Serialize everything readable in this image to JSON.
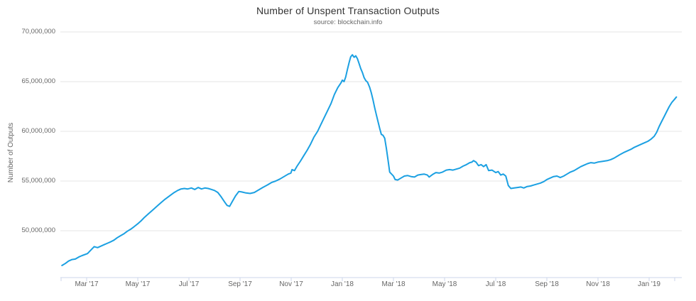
{
  "chart_data": {
    "type": "line",
    "title": "Number of Unspent Transaction Outputs",
    "subtitle": "source: blockchain.info",
    "xlabel": "",
    "ylabel": "Number of Outputs",
    "legend": "none",
    "grid": "horizontal",
    "ylim": [
      45300000,
      70600000
    ],
    "xlim": [
      "2017-02-01",
      "2019-02-10"
    ],
    "colors": {
      "line": "#1ba0e2",
      "gridline": "#e6e6e6",
      "axis_line": "#ccd6eb",
      "tick": "#ccd6eb",
      "label_text": "#666666",
      "title_text": "#333333"
    },
    "y_ticks": [
      {
        "value": 70000000,
        "label": "70,000,000"
      },
      {
        "value": 65000000,
        "label": "65,000,000"
      },
      {
        "value": 60000000,
        "label": "60,000,000"
      },
      {
        "value": 55000000,
        "label": "55,000,000"
      },
      {
        "value": 50000000,
        "label": "50,000,000"
      }
    ],
    "x_ticks": [
      {
        "date": "2017-02-01",
        "label": ""
      },
      {
        "date": "2017-03-01",
        "label": "Mar '17"
      },
      {
        "date": "2017-05-01",
        "label": "May '17"
      },
      {
        "date": "2017-07-01",
        "label": "Jul '17"
      },
      {
        "date": "2017-09-01",
        "label": "Sep '17"
      },
      {
        "date": "2017-11-01",
        "label": "Nov '17"
      },
      {
        "date": "2018-01-01",
        "label": "Jan '18"
      },
      {
        "date": "2018-03-01",
        "label": "Mar '18"
      },
      {
        "date": "2018-05-01",
        "label": "May '18"
      },
      {
        "date": "2018-07-01",
        "label": "Jul '18"
      },
      {
        "date": "2018-09-01",
        "label": "Sep '18"
      },
      {
        "date": "2018-11-01",
        "label": "Nov '18"
      },
      {
        "date": "2019-01-01",
        "label": "Jan '19"
      },
      {
        "date": "2019-02-01",
        "label": ""
      }
    ],
    "series": [
      {
        "name": "Number of unspent transaction outputs",
        "color": "#1ba0e2",
        "points": [
          [
            "2017-02-02",
            46500000
          ],
          [
            "2017-02-06",
            46700000
          ],
          [
            "2017-02-10",
            46950000
          ],
          [
            "2017-02-14",
            47100000
          ],
          [
            "2017-02-18",
            47150000
          ],
          [
            "2017-02-22",
            47350000
          ],
          [
            "2017-02-26",
            47500000
          ],
          [
            "2017-03-02",
            47700000
          ],
          [
            "2017-03-06",
            48050000
          ],
          [
            "2017-03-10",
            48400000
          ],
          [
            "2017-03-14",
            48300000
          ],
          [
            "2017-03-18",
            48450000
          ],
          [
            "2017-03-22",
            48600000
          ],
          [
            "2017-03-26",
            48750000
          ],
          [
            "2017-03-30",
            48900000
          ],
          [
            "2017-04-03",
            49050000
          ],
          [
            "2017-04-07",
            49300000
          ],
          [
            "2017-04-11",
            49500000
          ],
          [
            "2017-04-15",
            49700000
          ],
          [
            "2017-04-19",
            49950000
          ],
          [
            "2017-04-23",
            50150000
          ],
          [
            "2017-04-27",
            50400000
          ],
          [
            "2017-05-01",
            50700000
          ],
          [
            "2017-05-05",
            51000000
          ],
          [
            "2017-05-09",
            51350000
          ],
          [
            "2017-05-13",
            51650000
          ],
          [
            "2017-05-17",
            51950000
          ],
          [
            "2017-05-21",
            52250000
          ],
          [
            "2017-05-25",
            52550000
          ],
          [
            "2017-05-29",
            52850000
          ],
          [
            "2017-06-02",
            53100000
          ],
          [
            "2017-06-06",
            53350000
          ],
          [
            "2017-06-10",
            53600000
          ],
          [
            "2017-06-14",
            53850000
          ],
          [
            "2017-06-18",
            54050000
          ],
          [
            "2017-06-22",
            54200000
          ],
          [
            "2017-06-26",
            54250000
          ],
          [
            "2017-06-30",
            54200000
          ],
          [
            "2017-07-04",
            54300000
          ],
          [
            "2017-07-08",
            54150000
          ],
          [
            "2017-07-12",
            54350000
          ],
          [
            "2017-07-16",
            54200000
          ],
          [
            "2017-07-20",
            54300000
          ],
          [
            "2017-07-24",
            54250000
          ],
          [
            "2017-07-28",
            54150000
          ],
          [
            "2017-08-01",
            54050000
          ],
          [
            "2017-08-05",
            53850000
          ],
          [
            "2017-08-09",
            53400000
          ],
          [
            "2017-08-13",
            52900000
          ],
          [
            "2017-08-16",
            52550000
          ],
          [
            "2017-08-19",
            52450000
          ],
          [
            "2017-08-22",
            52900000
          ],
          [
            "2017-08-26",
            53500000
          ],
          [
            "2017-08-30",
            53950000
          ],
          [
            "2017-09-03",
            53900000
          ],
          [
            "2017-09-08",
            53800000
          ],
          [
            "2017-09-13",
            53750000
          ],
          [
            "2017-09-18",
            53850000
          ],
          [
            "2017-09-23",
            54100000
          ],
          [
            "2017-09-28",
            54350000
          ],
          [
            "2017-10-03",
            54600000
          ],
          [
            "2017-10-08",
            54850000
          ],
          [
            "2017-10-13",
            55000000
          ],
          [
            "2017-10-18",
            55200000
          ],
          [
            "2017-10-23",
            55450000
          ],
          [
            "2017-10-28",
            55700000
          ],
          [
            "2017-10-31",
            55800000
          ],
          [
            "2017-11-02",
            56150000
          ],
          [
            "2017-11-05",
            56050000
          ],
          [
            "2017-11-08",
            56500000
          ],
          [
            "2017-11-12",
            57000000
          ],
          [
            "2017-11-16",
            57550000
          ],
          [
            "2017-11-20",
            58100000
          ],
          [
            "2017-11-24",
            58700000
          ],
          [
            "2017-11-28",
            59400000
          ],
          [
            "2017-12-02",
            60000000
          ],
          [
            "2017-12-06",
            60700000
          ],
          [
            "2017-12-10",
            61400000
          ],
          [
            "2017-12-14",
            62100000
          ],
          [
            "2017-12-18",
            62800000
          ],
          [
            "2017-12-22",
            63700000
          ],
          [
            "2017-12-26",
            64400000
          ],
          [
            "2017-12-30",
            64900000
          ],
          [
            "2018-01-01",
            65150000
          ],
          [
            "2018-01-03",
            65000000
          ],
          [
            "2018-01-05",
            65450000
          ],
          [
            "2018-01-07",
            66200000
          ],
          [
            "2018-01-09",
            66900000
          ],
          [
            "2018-01-11",
            67500000
          ],
          [
            "2018-01-13",
            67700000
          ],
          [
            "2018-01-15",
            67450000
          ],
          [
            "2018-01-17",
            67600000
          ],
          [
            "2018-01-19",
            67300000
          ],
          [
            "2018-01-21",
            66800000
          ],
          [
            "2018-01-23",
            66300000
          ],
          [
            "2018-01-25",
            65900000
          ],
          [
            "2018-01-27",
            65400000
          ],
          [
            "2018-01-29",
            65100000
          ],
          [
            "2018-01-31",
            64950000
          ],
          [
            "2018-02-03",
            64450000
          ],
          [
            "2018-02-05",
            63900000
          ],
          [
            "2018-02-07",
            63200000
          ],
          [
            "2018-02-09",
            62400000
          ],
          [
            "2018-02-11",
            61700000
          ],
          [
            "2018-02-13",
            61000000
          ],
          [
            "2018-02-15",
            60300000
          ],
          [
            "2018-02-17",
            59700000
          ],
          [
            "2018-02-19",
            59600000
          ],
          [
            "2018-02-21",
            59300000
          ],
          [
            "2018-02-23",
            58300000
          ],
          [
            "2018-02-25",
            57100000
          ],
          [
            "2018-02-27",
            55900000
          ],
          [
            "2018-03-01",
            55500000
          ],
          [
            "2018-03-03",
            55150000
          ],
          [
            "2018-03-06",
            55100000
          ],
          [
            "2018-03-10",
            55300000
          ],
          [
            "2018-03-14",
            55500000
          ],
          [
            "2018-03-18",
            55550000
          ],
          [
            "2018-03-22",
            55450000
          ],
          [
            "2018-03-26",
            55400000
          ],
          [
            "2018-03-30",
            55600000
          ],
          [
            "2018-04-03",
            55650000
          ],
          [
            "2018-04-07",
            55700000
          ],
          [
            "2018-04-11",
            55600000
          ],
          [
            "2018-04-13",
            55400000
          ],
          [
            "2018-04-17",
            55650000
          ],
          [
            "2018-04-21",
            55850000
          ],
          [
            "2018-04-25",
            55800000
          ],
          [
            "2018-04-29",
            55900000
          ],
          [
            "2018-05-03",
            56100000
          ],
          [
            "2018-05-07",
            56150000
          ],
          [
            "2018-05-11",
            56100000
          ],
          [
            "2018-05-15",
            56200000
          ],
          [
            "2018-05-19",
            56300000
          ],
          [
            "2018-05-23",
            56500000
          ],
          [
            "2018-05-27",
            56650000
          ],
          [
            "2018-05-31",
            56850000
          ],
          [
            "2018-06-03",
            56900000
          ],
          [
            "2018-06-05",
            57050000
          ],
          [
            "2018-06-08",
            56900000
          ],
          [
            "2018-06-11",
            56550000
          ],
          [
            "2018-06-14",
            56650000
          ],
          [
            "2018-06-17",
            56450000
          ],
          [
            "2018-06-20",
            56650000
          ],
          [
            "2018-06-23",
            56050000
          ],
          [
            "2018-06-27",
            56100000
          ],
          [
            "2018-07-01",
            55850000
          ],
          [
            "2018-07-04",
            55950000
          ],
          [
            "2018-07-07",
            55600000
          ],
          [
            "2018-07-10",
            55700000
          ],
          [
            "2018-07-13",
            55500000
          ],
          [
            "2018-07-16",
            54550000
          ],
          [
            "2018-07-19",
            54250000
          ],
          [
            "2018-07-23",
            54300000
          ],
          [
            "2018-07-27",
            54350000
          ],
          [
            "2018-07-31",
            54400000
          ],
          [
            "2018-08-04",
            54300000
          ],
          [
            "2018-08-08",
            54450000
          ],
          [
            "2018-08-12",
            54500000
          ],
          [
            "2018-08-16",
            54600000
          ],
          [
            "2018-08-20",
            54700000
          ],
          [
            "2018-08-24",
            54800000
          ],
          [
            "2018-08-28",
            54950000
          ],
          [
            "2018-09-01",
            55150000
          ],
          [
            "2018-09-05",
            55300000
          ],
          [
            "2018-09-09",
            55450000
          ],
          [
            "2018-09-13",
            55500000
          ],
          [
            "2018-09-17",
            55350000
          ],
          [
            "2018-09-21",
            55500000
          ],
          [
            "2018-09-25",
            55700000
          ],
          [
            "2018-09-29",
            55900000
          ],
          [
            "2018-10-03",
            56050000
          ],
          [
            "2018-10-07",
            56250000
          ],
          [
            "2018-10-11",
            56450000
          ],
          [
            "2018-10-15",
            56600000
          ],
          [
            "2018-10-19",
            56750000
          ],
          [
            "2018-10-23",
            56850000
          ],
          [
            "2018-10-27",
            56800000
          ],
          [
            "2018-10-31",
            56900000
          ],
          [
            "2018-11-04",
            56950000
          ],
          [
            "2018-11-08",
            57000000
          ],
          [
            "2018-11-12",
            57050000
          ],
          [
            "2018-11-16",
            57150000
          ],
          [
            "2018-11-20",
            57300000
          ],
          [
            "2018-11-24",
            57500000
          ],
          [
            "2018-11-28",
            57700000
          ],
          [
            "2018-12-02",
            57900000
          ],
          [
            "2018-12-06",
            58050000
          ],
          [
            "2018-12-10",
            58200000
          ],
          [
            "2018-12-14",
            58400000
          ],
          [
            "2018-12-18",
            58550000
          ],
          [
            "2018-12-22",
            58700000
          ],
          [
            "2018-12-26",
            58850000
          ],
          [
            "2018-12-30",
            59000000
          ],
          [
            "2019-01-03",
            59200000
          ],
          [
            "2019-01-07",
            59500000
          ],
          [
            "2019-01-10",
            59900000
          ],
          [
            "2019-01-13",
            60500000
          ],
          [
            "2019-01-16",
            61000000
          ],
          [
            "2019-01-19",
            61500000
          ],
          [
            "2019-01-22",
            62000000
          ],
          [
            "2019-01-25",
            62500000
          ],
          [
            "2019-01-28",
            62900000
          ],
          [
            "2019-01-31",
            63200000
          ],
          [
            "2019-02-03",
            63450000
          ]
        ]
      }
    ]
  }
}
